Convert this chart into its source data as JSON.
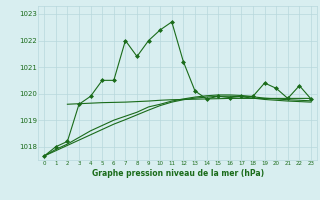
{
  "title": "Graphe pression niveau de la mer (hPa)",
  "background_color": "#d8eef0",
  "grid_color": "#b8d8dc",
  "line_color": "#1a6b1a",
  "xlim": [
    -0.5,
    23.5
  ],
  "ylim": [
    1017.5,
    1023.3
  ],
  "yticks": [
    1018,
    1019,
    1020,
    1021,
    1022,
    1023
  ],
  "xticks": [
    0,
    1,
    2,
    3,
    4,
    5,
    6,
    7,
    8,
    9,
    10,
    11,
    12,
    13,
    14,
    15,
    16,
    17,
    18,
    19,
    20,
    21,
    22,
    23
  ],
  "series": [
    {
      "x": [
        0,
        1,
        2,
        3,
        4,
        5,
        6,
        7,
        8,
        9,
        10,
        11,
        12,
        13,
        14,
        15,
        16,
        17,
        18,
        19,
        20,
        21,
        22,
        23
      ],
      "y": [
        1017.65,
        1018.0,
        1018.2,
        1019.6,
        1019.9,
        1020.5,
        1020.5,
        1022.0,
        1021.4,
        1022.0,
        1022.4,
        1022.7,
        1021.2,
        1020.1,
        1019.8,
        1019.9,
        1019.85,
        1019.9,
        1019.9,
        1020.4,
        1020.2,
        1019.82,
        1020.3,
        1019.8
      ],
      "marker": "D",
      "markersize": 2.0,
      "linewidth": 0.8
    },
    {
      "x": [
        0,
        1,
        2,
        3,
        4,
        5,
        6,
        7,
        8,
        9,
        10,
        11,
        12,
        13,
        14,
        15,
        16,
        17,
        18,
        19,
        20,
        21,
        22,
        23
      ],
      "y": [
        1017.65,
        1017.9,
        1018.1,
        1018.35,
        1018.6,
        1018.8,
        1019.0,
        1019.15,
        1019.3,
        1019.5,
        1019.6,
        1019.72,
        1019.8,
        1019.87,
        1019.92,
        1019.95,
        1019.95,
        1019.93,
        1019.88,
        1019.83,
        1019.8,
        1019.77,
        1019.75,
        1019.73
      ],
      "marker": null,
      "linewidth": 0.8
    },
    {
      "x": [
        0,
        1,
        2,
        3,
        4,
        5,
        6,
        7,
        8,
        9,
        10,
        11,
        12,
        13,
        14,
        15,
        16,
        17,
        18,
        19,
        20,
        21,
        22,
        23
      ],
      "y": [
        1017.65,
        1017.85,
        1018.05,
        1018.25,
        1018.45,
        1018.65,
        1018.85,
        1019.02,
        1019.2,
        1019.38,
        1019.55,
        1019.68,
        1019.77,
        1019.83,
        1019.87,
        1019.9,
        1019.9,
        1019.88,
        1019.83,
        1019.78,
        1019.75,
        1019.72,
        1019.7,
        1019.68
      ],
      "marker": null,
      "linewidth": 0.8
    },
    {
      "x": [
        2,
        3,
        4,
        5,
        6,
        7,
        8,
        9,
        10,
        11,
        12,
        13,
        14,
        15,
        16,
        17,
        18,
        19,
        20,
        21,
        22,
        23
      ],
      "y": [
        1019.6,
        1019.62,
        1019.64,
        1019.66,
        1019.67,
        1019.68,
        1019.7,
        1019.72,
        1019.75,
        1019.77,
        1019.78,
        1019.79,
        1019.8,
        1019.81,
        1019.82,
        1019.82,
        1019.82,
        1019.82,
        1019.82,
        1019.82,
        1019.82,
        1019.82
      ],
      "marker": null,
      "linewidth": 0.8
    }
  ]
}
